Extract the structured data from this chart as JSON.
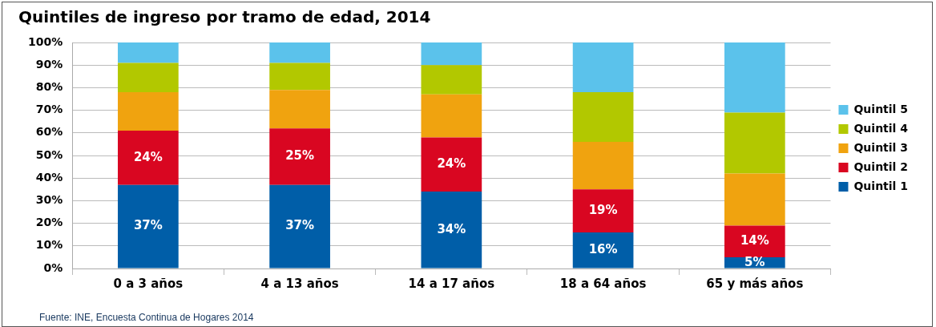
{
  "chart_data": {
    "type": "bar",
    "stacked": true,
    "title": "Quintiles de ingreso por tramo de edad, 2014",
    "categories": [
      "0 a 3 años",
      "4 a 13 años",
      "14 a 17 años",
      "18 a 64 años",
      "65 y más años"
    ],
    "series": [
      {
        "name": "Quintil 1",
        "color": "#005ea8",
        "values": [
          37,
          37,
          34,
          16,
          5
        ],
        "value_labels": [
          "37%",
          "37%",
          "34%",
          "16%",
          "5%"
        ]
      },
      {
        "name": "Quintil 2",
        "color": "#d90621",
        "values": [
          24,
          25,
          24,
          19,
          14
        ],
        "value_labels": [
          "24%",
          "25%",
          "24%",
          "19%",
          "14%"
        ]
      },
      {
        "name": "Quintil 3",
        "color": "#f0a30f",
        "values": [
          17,
          17,
          19,
          21,
          23
        ]
      },
      {
        "name": "Quintil 4",
        "color": "#b2c800",
        "values": [
          13,
          12,
          13,
          22,
          27
        ]
      },
      {
        "name": "Quintil 5",
        "color": "#5bc2eb",
        "values": [
          9,
          9,
          10,
          22,
          31
        ]
      }
    ],
    "ylim": [
      0,
      100
    ],
    "yticks": [
      {
        "value": 0,
        "label": "0%"
      },
      {
        "value": 10,
        "label": "10%"
      },
      {
        "value": 20,
        "label": "20%"
      },
      {
        "value": 30,
        "label": "30%"
      },
      {
        "value": 40,
        "label": "40%"
      },
      {
        "value": 50,
        "label": "50%"
      },
      {
        "value": 60,
        "label": "60%"
      },
      {
        "value": 70,
        "label": "70%"
      },
      {
        "value": 80,
        "label": "80%"
      },
      {
        "value": 90,
        "label": "90%"
      },
      {
        "value": 100,
        "label": "100%"
      }
    ],
    "grid": "y",
    "legend": "right",
    "annotations": [
      "Fuente: INE, Encuesta Continua de Hogares 2014"
    ]
  }
}
